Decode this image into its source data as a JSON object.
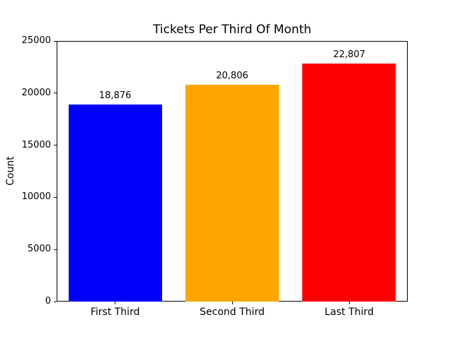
{
  "chart_data": {
    "type": "bar",
    "title": "Tickets Per Third Of Month",
    "categories": [
      "First Third",
      "Second Third",
      "Last Third"
    ],
    "values": [
      18876,
      20806,
      22807
    ],
    "value_labels": [
      "18,876",
      "20,806",
      "22,807"
    ],
    "bar_colors": [
      "#0000ff",
      "#ffa500",
      "#ff0000"
    ],
    "xlabel": "",
    "ylabel": "Count",
    "ylim": [
      0,
      25000
    ],
    "yticks": [
      0,
      5000,
      10000,
      15000,
      20000,
      25000
    ],
    "ytick_labels": [
      "0",
      "5000",
      "10000",
      "15000",
      "20000",
      "25000"
    ],
    "grid": false,
    "legend": null,
    "background_color": "#ffffff",
    "axis_color": "#000000"
  }
}
